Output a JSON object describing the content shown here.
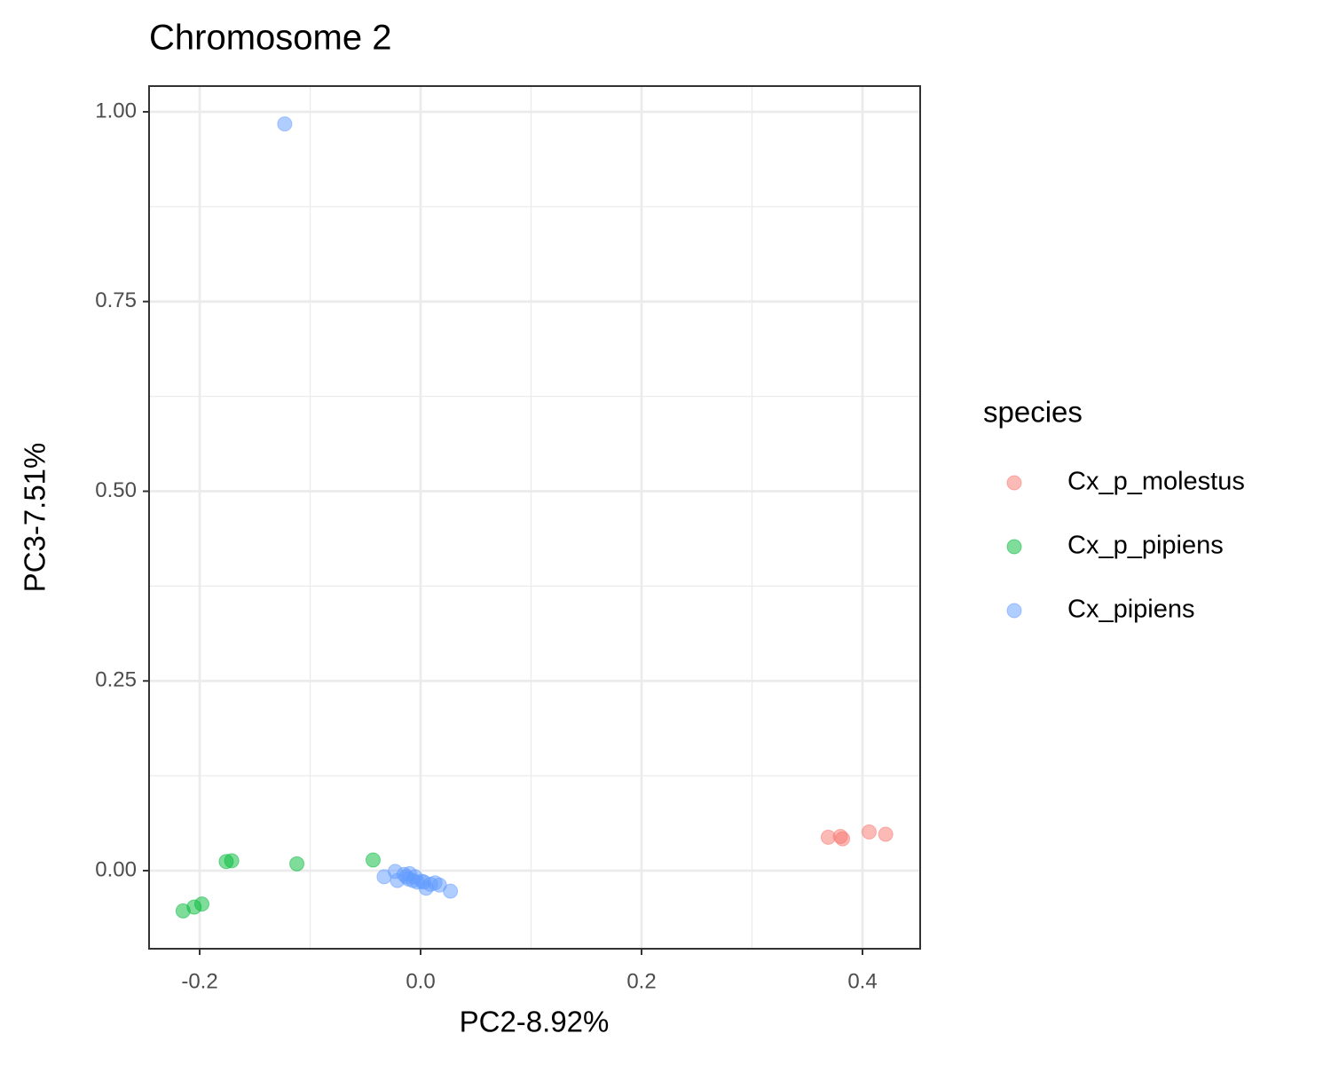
{
  "chart_data": {
    "type": "scatter",
    "title": "Chromosome 2",
    "x_label": "PC2-8.92%",
    "y_label": "PC3-7.51%",
    "legend_title": "species",
    "xlim": [
      -0.2458,
      0.4522
    ],
    "ylim": [
      -0.1029,
      1.0339
    ],
    "xticks": [
      {
        "value": -0.2,
        "label": "-0.2"
      },
      {
        "value": 0,
        "label": "0.0"
      },
      0.2,
      0.4
    ],
    "yticks": [
      {
        "value": 0,
        "label": "0.00"
      },
      {
        "value": 0.25,
        "label": "0.25"
      },
      {
        "value": 0.5,
        "label": "0.50"
      },
      {
        "value": 0.75,
        "label": "0.75"
      },
      {
        "value": 1,
        "label": "1.00"
      }
    ],
    "grid": true,
    "legend": "right",
    "series": [
      {
        "name": "Cx_p_molestus",
        "color": "#F8766D",
        "x": [
          0.369,
          0.38,
          0.382,
          0.406,
          0.421
        ],
        "values": [
          0.044,
          0.045,
          0.042,
          0.051,
          0.048
        ]
      },
      {
        "name": "Cx_p_pipiens",
        "color": "#00BA38",
        "x": [
          -0.215,
          -0.205,
          -0.198,
          -0.176,
          -0.171,
          -0.112,
          -0.043
        ],
        "values": [
          -0.053,
          -0.048,
          -0.044,
          0.012,
          0.013,
          0.009,
          0.014
        ]
      },
      {
        "name": "Cx_pipiens",
        "color": "#619CFF",
        "x": [
          -0.123,
          -0.033,
          -0.023,
          -0.021,
          -0.015,
          -0.011,
          -0.01,
          -0.007,
          -0.003,
          0.001,
          0.005,
          0.009,
          0.013,
          0.017,
          0.027,
          -0.013,
          -0.005,
          0.003
        ],
        "values": [
          0.984,
          -0.008,
          -0.001,
          -0.013,
          -0.005,
          -0.011,
          -0.004,
          -0.013,
          -0.015,
          -0.014,
          -0.023,
          -0.018,
          -0.016,
          -0.019,
          -0.027,
          -0.008,
          -0.008,
          -0.015
        ]
      }
    ]
  }
}
